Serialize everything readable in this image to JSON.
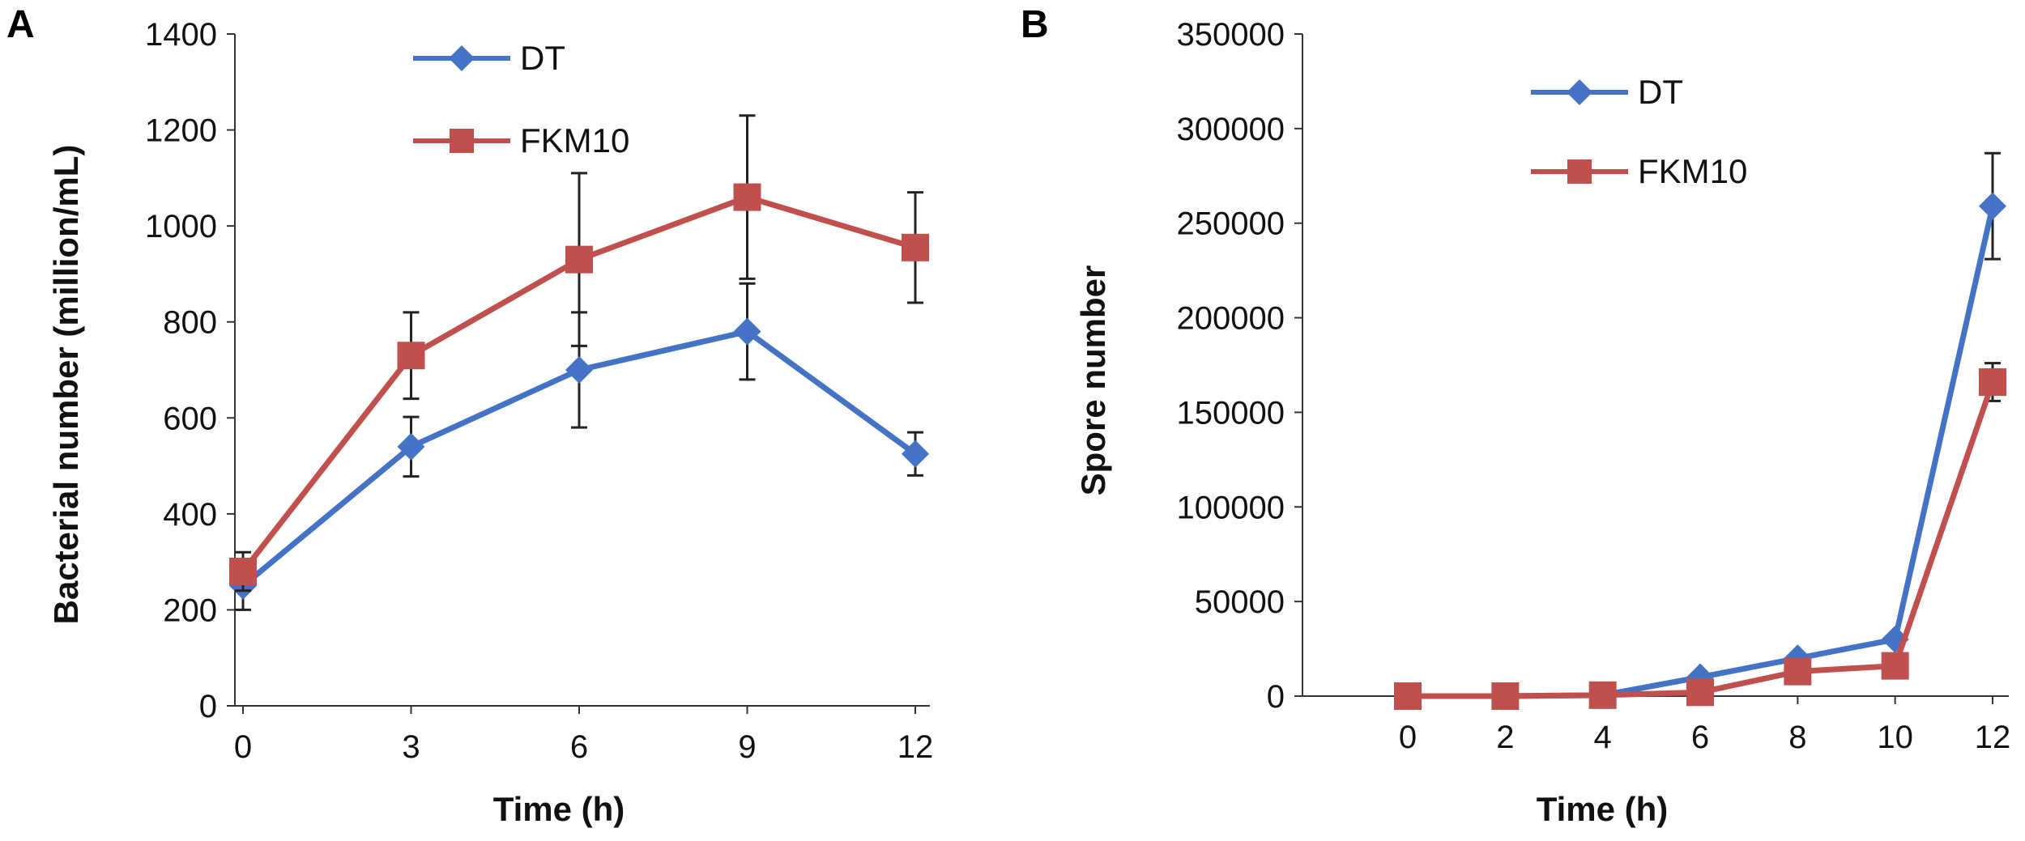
{
  "chart_data": [
    {
      "panel_label": "A",
      "type": "line",
      "title": "",
      "xlabel": "Time (h)",
      "ylabel": "Bacterial number (million/mL)",
      "x": [
        0,
        3,
        6,
        9,
        12
      ],
      "x_ticks": [
        "0",
        "3",
        "6",
        "9",
        "12"
      ],
      "ylim": [
        0,
        1400
      ],
      "y_ticks": [
        "0",
        "200",
        "400",
        "600",
        "800",
        "1000",
        "1200",
        "1400"
      ],
      "grid": false,
      "legend_position": "top-center",
      "series": [
        {
          "name": "DT",
          "color": "#4472C4",
          "marker": "diamond",
          "values": [
            250,
            540,
            700,
            780,
            525
          ],
          "errors": [
            50,
            62,
            120,
            100,
            45
          ]
        },
        {
          "name": "FKM10",
          "color": "#C0504D",
          "marker": "square",
          "values": [
            280,
            730,
            930,
            1060,
            955
          ],
          "errors": [
            40,
            90,
            180,
            170,
            115
          ]
        }
      ]
    },
    {
      "panel_label": "B",
      "type": "line",
      "title": "",
      "xlabel": "Time (h)",
      "ylabel": "Spore number",
      "x": [
        0,
        2,
        4,
        6,
        8,
        10,
        12
      ],
      "x_ticks": [
        "0",
        "2",
        "4",
        "6",
        "8",
        "10",
        "12"
      ],
      "ylim": [
        0,
        350000
      ],
      "y_ticks": [
        "0",
        "50000",
        "100000",
        "150000",
        "200000",
        "250000",
        "300000",
        "350000"
      ],
      "grid": false,
      "legend_position": "top-center",
      "series": [
        {
          "name": "DT",
          "color": "#4472C4",
          "marker": "diamond",
          "values": [
            0,
            0,
            500,
            10000,
            20000,
            30000,
            259000
          ],
          "errors": [
            0,
            0,
            0,
            0,
            0,
            0,
            28000
          ]
        },
        {
          "name": "FKM10",
          "color": "#C0504D",
          "marker": "square",
          "values": [
            0,
            0,
            500,
            2000,
            13000,
            16000,
            166000
          ],
          "errors": [
            0,
            0,
            0,
            0,
            0,
            0,
            10000
          ]
        }
      ]
    }
  ]
}
